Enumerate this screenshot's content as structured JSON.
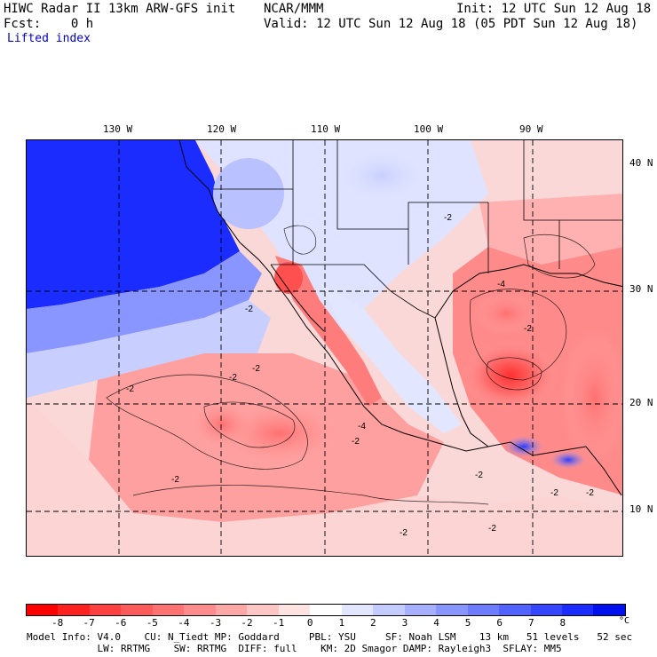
{
  "header": {
    "line1_left": "HIWC Radar II 13km ARW-GFS init",
    "line1_mid": "NCAR/MMM",
    "line1_right": "Init: 12 UTC Sun 12 Aug 18",
    "line2_left": "Fcst:    0 h",
    "line2_right": "Valid: 12 UTC Sun 12 Aug 18 (05 PDT Sun 12 Aug 18)",
    "field_name": "Lifted index"
  },
  "axes": {
    "longitudes": [
      "130 W",
      "120 W",
      "110 W",
      "100 W",
      "90 W"
    ],
    "latitudes": [
      "40 N",
      "30 N",
      "20 N",
      "10 N"
    ]
  },
  "colorbar": {
    "ticks": [
      "-8",
      "-7",
      "-6",
      "-5",
      "-4",
      "-3",
      "-2",
      "-1",
      "0",
      "1",
      "2",
      "3",
      "4",
      "5",
      "6",
      "7",
      "8"
    ],
    "unit": "°C",
    "colors": [
      "#ff0000",
      "#ff2020",
      "#ff4040",
      "#ff5a5a",
      "#ff7272",
      "#ff8c8c",
      "#ffa6a6",
      "#ffc4c4",
      "#ffe2e2",
      "#ffffff",
      "#e2e6ff",
      "#c4ccff",
      "#a6b0ff",
      "#8a96ff",
      "#6e7cff",
      "#5262ff",
      "#3446ff",
      "#1a2cff",
      "#0010ee"
    ]
  },
  "contour_labels": [
    "-2",
    "-2",
    "-2",
    "-2",
    "-2",
    "-4",
    "-4",
    "-2",
    "-2",
    "-2",
    "-2",
    "-2",
    "-2",
    "-2",
    "-2"
  ],
  "footer": {
    "line1": "Model Info: V4.0    CU: N_Tiedt MP: Goddard     PBL: YSU     SF: Noah LSM    13 km   51 levels   52 sec",
    "line2": "            LW: RRTMG    SW: RRTMG  DIFF: full    KM: 2D Smagor DAMP: Rayleigh3  SFLAY: MM5"
  }
}
